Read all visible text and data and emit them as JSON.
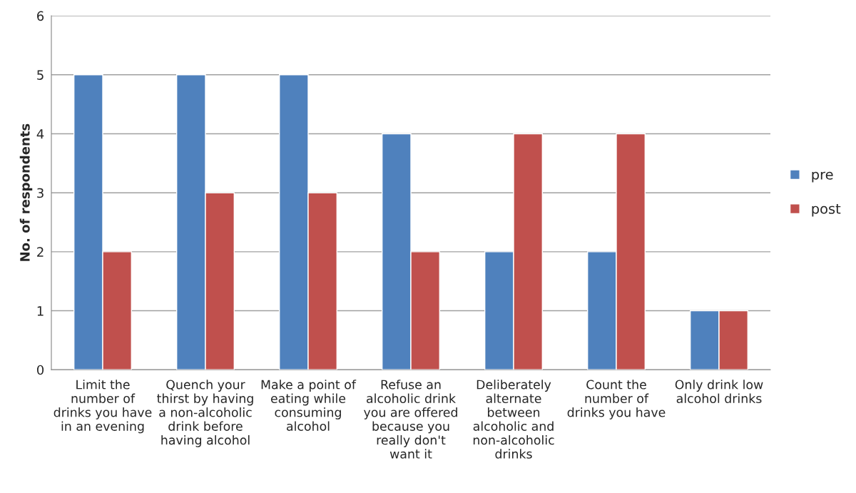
{
  "chart_data": {
    "type": "bar",
    "ylabel": "No. of respondents",
    "categories": [
      "Limit the\nnumber of\ndrinks you have\nin an evening",
      "Quench your\nthirst by having\na non-alcoholic\ndrink before\nhaving alcohol",
      "Make a point of\neating while\nconsuming\nalcohol",
      "Refuse an\nalcoholic drink\nyou are offered\nbecause you\nreally don't\nwant it",
      "Deliberately\nalternate\nbetween\nalcoholic and\nnon-alcoholic\ndrinks",
      "Count the\nnumber of\ndrinks you have",
      "Only drink low\nalcohol drinks"
    ],
    "series": [
      {
        "name": "pre",
        "color": "#4f81bd",
        "values": [
          5,
          5,
          5,
          4,
          2,
          2,
          1
        ]
      },
      {
        "name": "post",
        "color": "#c0504d",
        "values": [
          2,
          3,
          3,
          2,
          4,
          4,
          1
        ]
      }
    ],
    "ylim": [
      0,
      6
    ],
    "yticks": [
      0,
      1,
      2,
      3,
      4,
      5,
      6
    ],
    "grid": "y",
    "legend": "right"
  }
}
